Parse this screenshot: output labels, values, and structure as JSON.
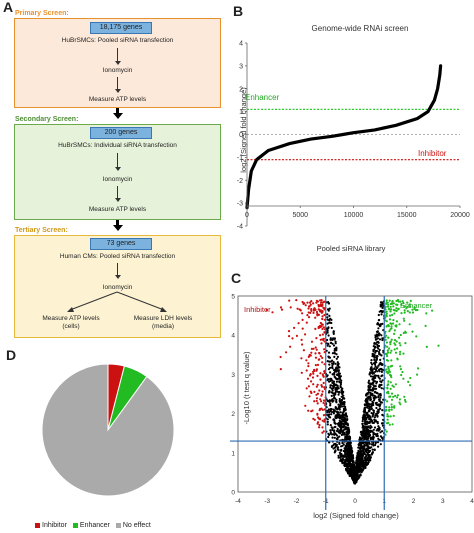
{
  "panels": {
    "a": "A",
    "b": "B",
    "c": "C",
    "d": "D"
  },
  "flow": {
    "primary": {
      "title": "Primary Screen:",
      "genes": "18,175 genes",
      "line1": "HuBrSMCs: Pooled siRNA transfection",
      "step1": "Ionomycin",
      "step2": "Measure ATP levels"
    },
    "secondary": {
      "title": "Secondary Screen:",
      "genes": "200 genes",
      "line1": "HuBrSMCs: Individual siRNA transfection",
      "step1": "Ionomycin",
      "step2": "Measure ATP levels"
    },
    "tertiary": {
      "title": "Tertiary Screen:",
      "genes": "73 genes",
      "line1": "Human CMs: Pooled siRNA transfection",
      "step1": "Ionomycin",
      "out1a": "Measure ATP levels",
      "out1b": "(cells)",
      "out2a": "Measure LDH levels",
      "out2b": "(media)"
    }
  },
  "colors": {
    "primary": "#e8922f",
    "secondary": "#6aaa4a",
    "tertiary": "#e6b93a",
    "inhibitor": "#cc1111",
    "enhancer": "#22bb22",
    "neutral": "#000000",
    "noeffect": "#aaaaaa",
    "cutoff": "#2f6db5"
  },
  "chart_data": [
    {
      "type": "scatter",
      "title": "Genome-wide RNAi screen",
      "xlabel": "Pooled siRNA library",
      "ylabel": "log2 (Signed fold change)",
      "xlim": [
        0,
        20000
      ],
      "ylim": [
        -4,
        4
      ],
      "xticks": [
        0,
        5000,
        10000,
        15000,
        20000
      ],
      "yticks": [
        -4,
        -3,
        -2,
        -1,
        0,
        1,
        2,
        3,
        4
      ],
      "annotations": [
        "Enhancer",
        "Inhibitor"
      ],
      "thresholds": {
        "enhancer": 1.1,
        "inhibitor": -1.1,
        "zero": 0
      },
      "series": [
        {
          "x": [
            0,
            150,
            400,
            900,
            2000,
            4000,
            6000,
            8000,
            9000,
            10000,
            12000,
            14000,
            16000,
            17000,
            17600,
            17900,
            18100,
            18175
          ],
          "values": [
            -3.2,
            -2.4,
            -1.6,
            -1.1,
            -0.7,
            -0.4,
            -0.2,
            -0.08,
            0,
            0.08,
            0.2,
            0.4,
            0.7,
            1.0,
            1.5,
            2.0,
            2.6,
            3.0
          ]
        }
      ]
    },
    {
      "type": "scatter",
      "xlabel": "log2 (Signed fold change)",
      "ylabel": "-Log10 (t test q value)",
      "xlim": [
        -4,
        4
      ],
      "ylim": [
        0,
        5
      ],
      "xticks": [
        -4,
        -3,
        -2,
        -1,
        0,
        1,
        2,
        3,
        4
      ],
      "yticks": [
        0,
        1,
        2,
        3,
        4,
        5
      ],
      "annotations": [
        "Inhibitor",
        "Enhancer"
      ],
      "cutoffs": {
        "x": [
          -1,
          1
        ],
        "y": 1.3
      }
    },
    {
      "type": "pie",
      "categories": [
        "Inhibitor",
        "Enhancer",
        "No effect"
      ],
      "values": [
        4,
        6,
        90
      ]
    }
  ]
}
